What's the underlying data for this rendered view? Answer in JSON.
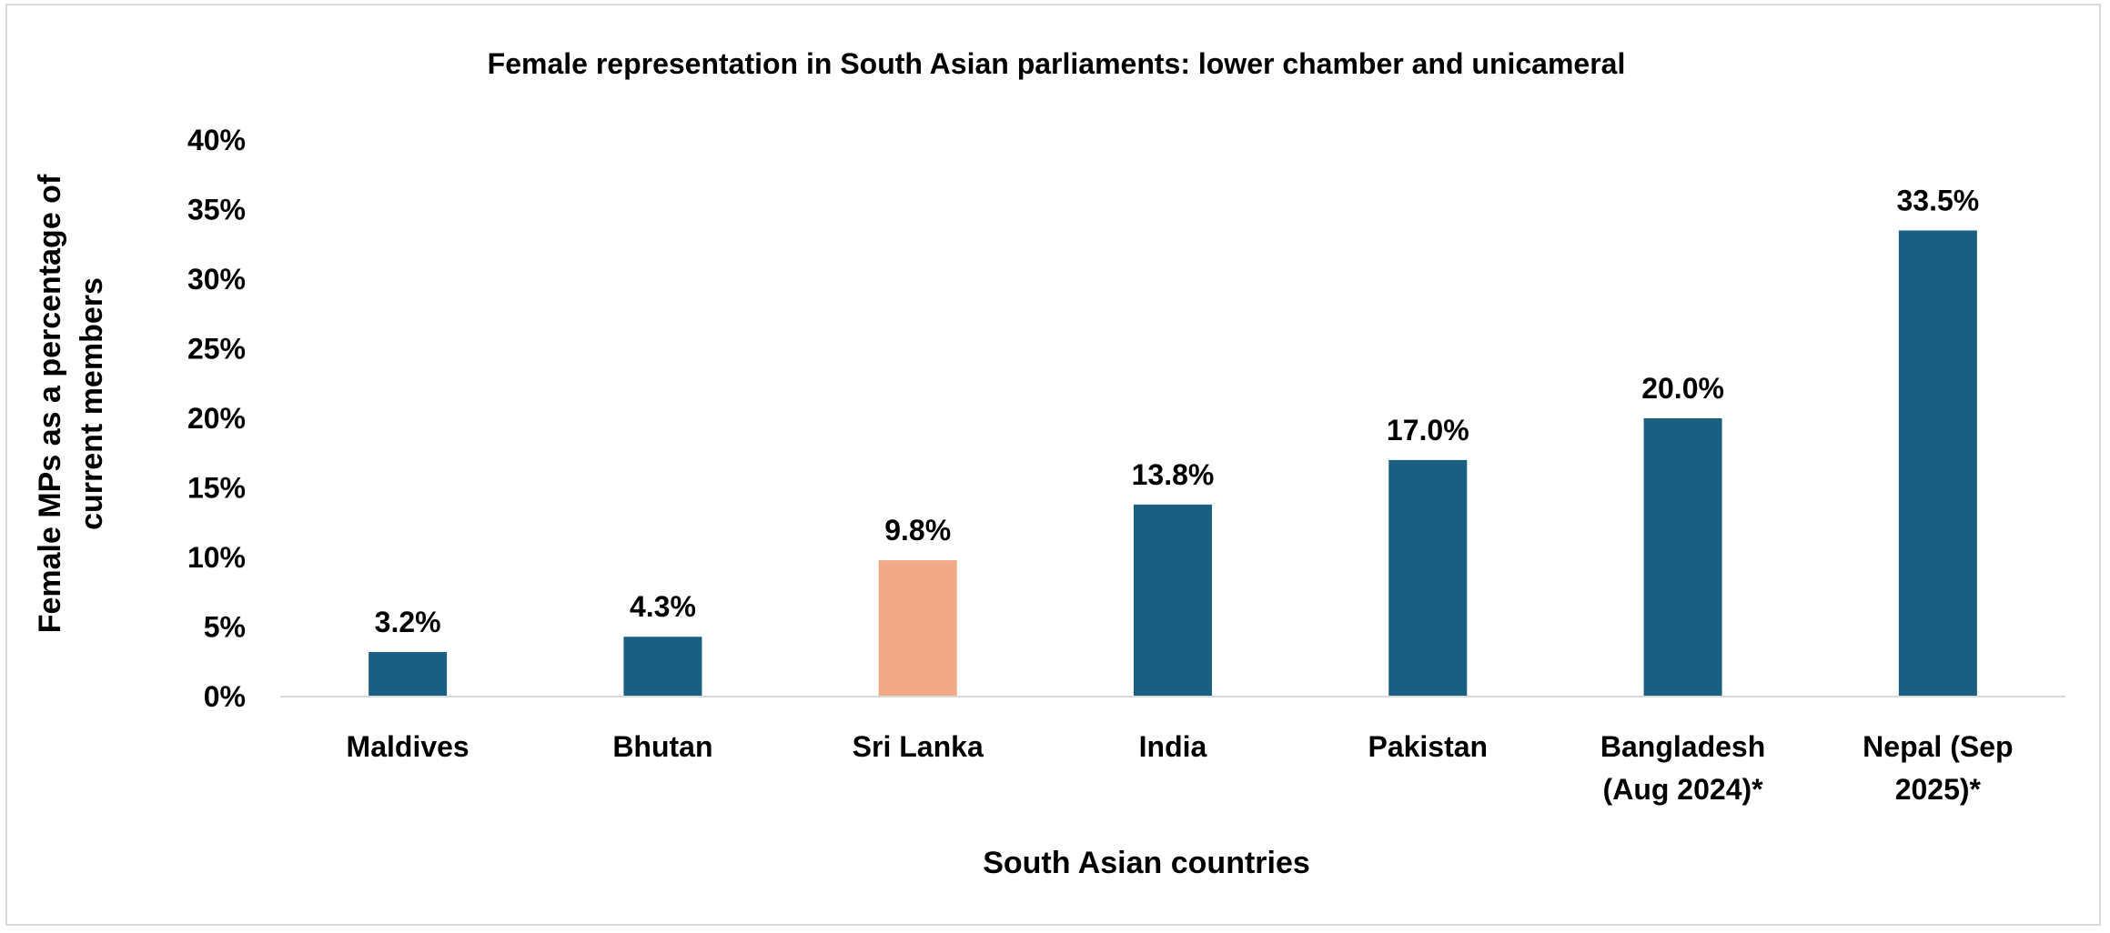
{
  "chart_data": {
    "type": "bar",
    "title": "Female representation in South Asian parliaments: lower chamber and unicameral",
    "xlabel": "South Asian countries",
    "ylabel": [
      "Female MPs  as a percentage of",
      "current members"
    ],
    "ylim": [
      0,
      40
    ],
    "yticks": [
      0,
      5,
      10,
      15,
      20,
      25,
      30,
      35,
      40
    ],
    "ytick_labels": [
      "0%",
      "5%",
      "10%",
      "15%",
      "20%",
      "25%",
      "30%",
      "35%",
      "40%"
    ],
    "grid": false,
    "categories": [
      [
        "Maldives"
      ],
      [
        "Bhutan"
      ],
      [
        "Sri Lanka"
      ],
      [
        "India"
      ],
      [
        "Pakistan"
      ],
      [
        "Bangladesh",
        "(Aug 2024)*"
      ],
      [
        "Nepal (Sep",
        "2025)*"
      ]
    ],
    "values": [
      3.2,
      4.3,
      9.8,
      13.8,
      17.0,
      20.0,
      33.5
    ],
    "data_labels": [
      "3.2%",
      "4.3%",
      "9.8%",
      "13.8%",
      "17.0%",
      "20.0%",
      "33.5%"
    ],
    "colors": [
      "#1a5f82",
      "#1a5f82",
      "#f2a987",
      "#1a5f82",
      "#1a5f82",
      "#1a5f82",
      "#1a5f82"
    ],
    "axis_color": "#d9d9d9"
  }
}
